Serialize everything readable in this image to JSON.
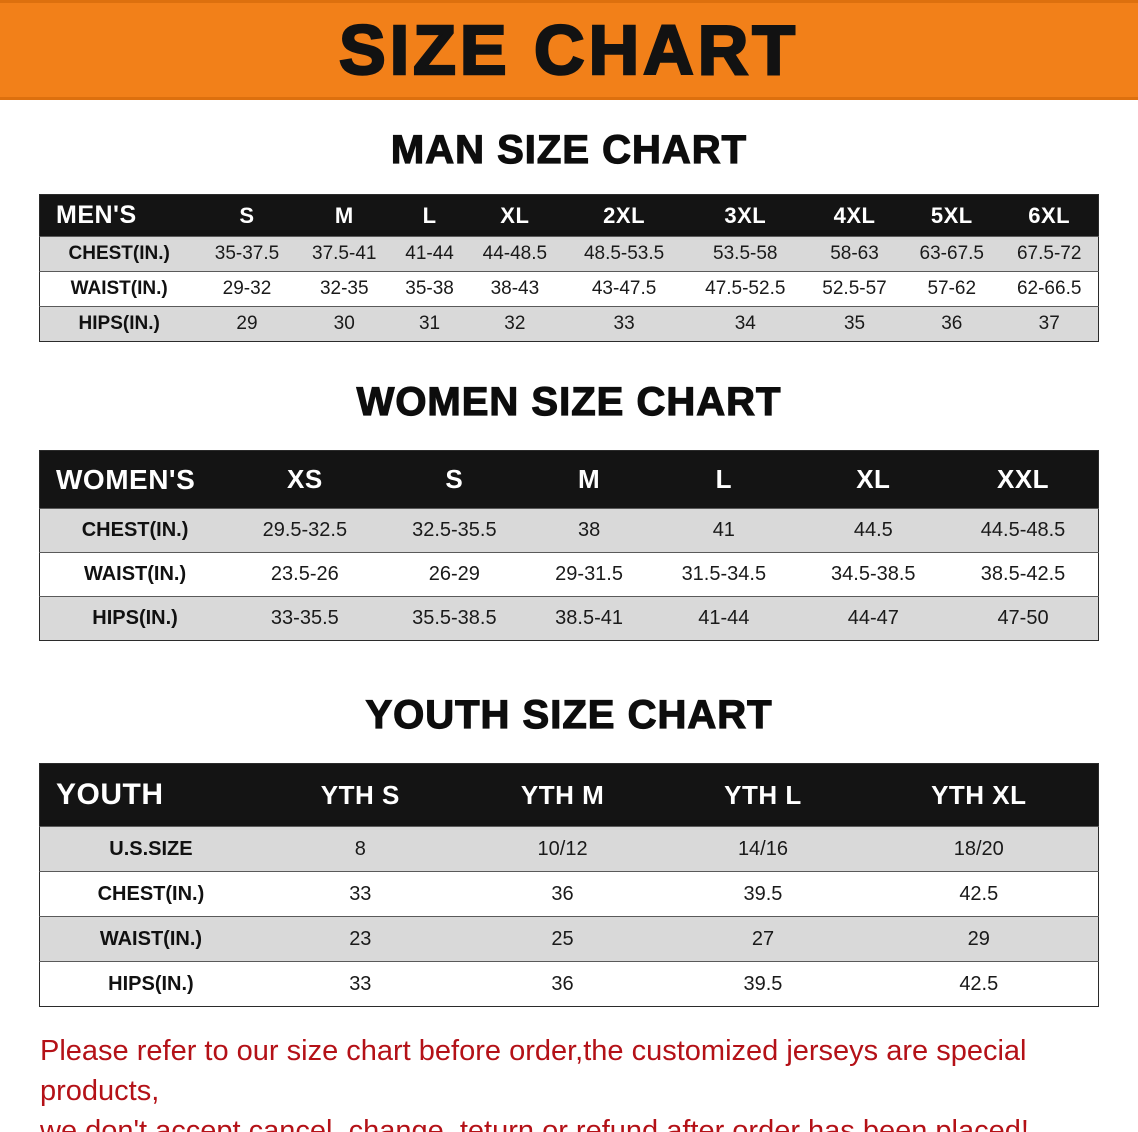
{
  "banner": {
    "title": "SIZE CHART",
    "bg_color": "#f28019"
  },
  "colors": {
    "banner_orange": "#f28019",
    "header_black": "#141414",
    "row_gray": "#d9d9d9",
    "disclaimer_red": "#b41117"
  },
  "sections": [
    {
      "id": "men",
      "heading": "MAN SIZE CHART",
      "table": {
        "columns": [
          "MEN'S",
          "S",
          "M",
          "L",
          "XL",
          "2XL",
          "3XL",
          "4XL",
          "5XL",
          "6XL"
        ],
        "rows": [
          {
            "label": "CHEST(IN.)",
            "values": [
              "35-37.5",
              "37.5-41",
              "41-44",
              "44-48.5",
              "48.5-53.5",
              "53.5-58",
              "58-63",
              "63-67.5",
              "67.5-72"
            ]
          },
          {
            "label": "WAIST(IN.)",
            "values": [
              "29-32",
              "32-35",
              "35-38",
              "38-43",
              "43-47.5",
              "47.5-52.5",
              "52.5-57",
              "57-62",
              "62-66.5"
            ]
          },
          {
            "label": "HIPS(IN.)",
            "values": [
              "29",
              "30",
              "31",
              "32",
              "33",
              "34",
              "35",
              "36",
              "37"
            ]
          }
        ]
      }
    },
    {
      "id": "women",
      "heading": "WOMEN SIZE CHART",
      "table": {
        "columns": [
          "WOMEN'S",
          "XS",
          "S",
          "M",
          "L",
          "XL",
          "XXL"
        ],
        "rows": [
          {
            "label": "CHEST(IN.)",
            "values": [
              "29.5-32.5",
              "32.5-35.5",
              "38",
              "41",
              "44.5",
              "44.5-48.5"
            ]
          },
          {
            "label": "WAIST(IN.)",
            "values": [
              "23.5-26",
              "26-29",
              "29-31.5",
              "31.5-34.5",
              "34.5-38.5",
              "38.5-42.5"
            ]
          },
          {
            "label": "HIPS(IN.)",
            "values": [
              "33-35.5",
              "35.5-38.5",
              "38.5-41",
              "41-44",
              "44-47",
              "47-50"
            ]
          }
        ]
      }
    },
    {
      "id": "youth",
      "heading": "YOUTH SIZE CHART",
      "table": {
        "columns": [
          "YOUTH",
          "YTH S",
          "YTH M",
          "YTH L",
          "YTH XL"
        ],
        "rows": [
          {
            "label": "U.S.SIZE",
            "values": [
              "8",
              "10/12",
              "14/16",
              "18/20"
            ]
          },
          {
            "label": "CHEST(IN.)",
            "values": [
              "33",
              "36",
              "39.5",
              "42.5"
            ]
          },
          {
            "label": "WAIST(IN.)",
            "values": [
              "23",
              "25",
              "27",
              "29"
            ]
          },
          {
            "label": "HIPS(IN.)",
            "values": [
              "33",
              "36",
              "39.5",
              "42.5"
            ]
          }
        ]
      }
    }
  ],
  "disclaimer": {
    "line1": "Please refer to our size chart before order,the customized jerseys are special products,",
    "line2": "we don't accept cancel, change, teturn or refund after order has been placed!"
  }
}
